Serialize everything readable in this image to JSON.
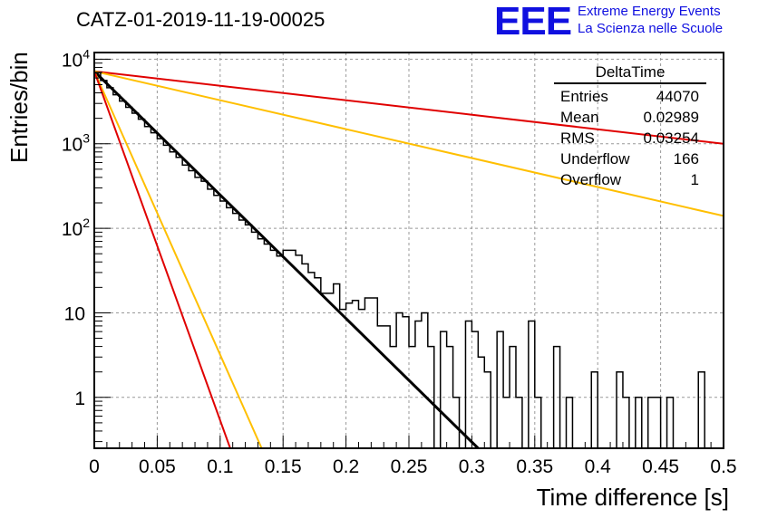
{
  "title": "CATZ-01-2019-11-19-00025",
  "logo": {
    "mark": "EEE",
    "line1": "Extreme Energy Events",
    "line2": "La Scienza nelle Scuole",
    "color": "#1010e0"
  },
  "stats_box": {
    "title": "DeltaTime",
    "rows": [
      {
        "label": "Entries",
        "value": "44070"
      },
      {
        "label": "Mean",
        "value": "0.02989"
      },
      {
        "label": "RMS",
        "value": "0.03254"
      },
      {
        "label": "Underflow",
        "value": "166"
      },
      {
        "label": "Overflow",
        "value": "1"
      }
    ]
  },
  "chart_data": {
    "type": "line",
    "xlabel": "Time difference [s]",
    "ylabel": "Entries/bin",
    "xlim": [
      0,
      0.5
    ],
    "ylim": [
      0.25,
      12000
    ],
    "yscale": "log",
    "grid": true,
    "x_ticks": [
      "0",
      "0.05",
      "0.1",
      "0.15",
      "0.2",
      "0.25",
      "0.3",
      "0.35",
      "0.4",
      "0.45",
      "0.5"
    ],
    "y_ticks": [
      {
        "value": 1,
        "base": "1",
        "exp": ""
      },
      {
        "value": 10,
        "base": "10",
        "exp": ""
      },
      {
        "value": 100,
        "base": "10",
        "exp": "2"
      },
      {
        "value": 1000,
        "base": "10",
        "exp": "3"
      },
      {
        "value": 10000,
        "base": "10",
        "exp": "4"
      }
    ],
    "histogram": {
      "color": "#000000",
      "bin_width": 0.005,
      "x_start": 0,
      "values": [
        6900,
        5600,
        4600,
        3800,
        3200,
        2700,
        2300,
        1950,
        1600,
        1350,
        1150,
        960,
        800,
        690,
        560,
        480,
        400,
        360,
        290,
        245,
        210,
        175,
        150,
        125,
        110,
        90,
        75,
        65,
        55,
        47,
        55,
        55,
        48,
        38,
        30,
        26,
        17,
        17,
        22,
        11,
        13,
        14,
        11,
        15,
        15,
        7,
        7,
        4,
        10,
        9,
        4,
        8,
        10,
        4,
        0,
        6,
        4,
        1,
        0,
        8,
        6,
        3,
        2,
        0,
        6,
        1,
        4,
        1,
        0,
        8,
        1,
        0,
        0,
        4,
        0,
        1,
        0,
        0,
        0,
        2,
        0,
        0,
        0,
        2,
        1,
        0,
        1,
        0,
        1,
        1,
        0,
        1,
        0,
        0,
        0,
        0,
        2,
        0,
        0,
        0
      ]
    },
    "fits": [
      {
        "color": "#000000",
        "width": 3,
        "points": [
          [
            0,
            7200
          ],
          [
            0.305,
            0.25
          ]
        ]
      },
      {
        "color": "#e00000",
        "width": 2,
        "points": [
          [
            0,
            7200
          ],
          [
            0.5,
            1000
          ]
        ]
      },
      {
        "color": "#ffbf00",
        "width": 2,
        "points": [
          [
            0,
            7200
          ],
          [
            0.5,
            140
          ]
        ]
      },
      {
        "color": "#ffbf00",
        "width": 2,
        "points": [
          [
            0,
            7200
          ],
          [
            0.133,
            0.25
          ]
        ]
      },
      {
        "color": "#e00000",
        "width": 2,
        "points": [
          [
            0,
            7200
          ],
          [
            0.108,
            0.25
          ]
        ]
      }
    ]
  }
}
